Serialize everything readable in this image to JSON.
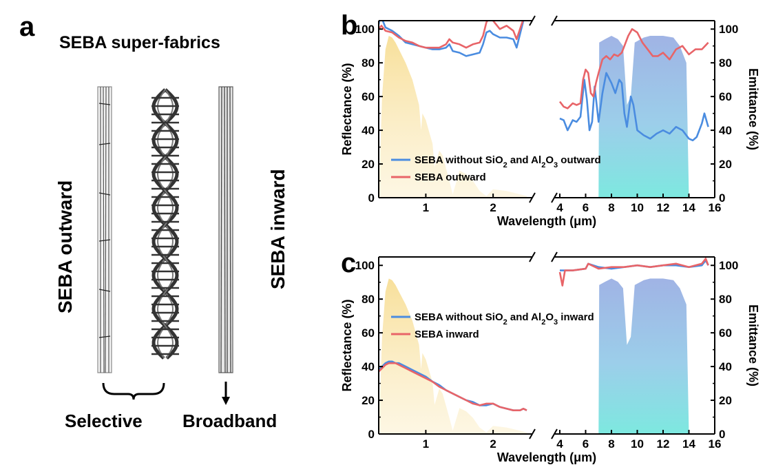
{
  "panel_a": {
    "letter": "a",
    "title": "SEBA super-fabrics",
    "left_label": "SEBA outward",
    "right_label": "SEBA inward",
    "bottom_left": "Selective",
    "bottom_right": "Broadband"
  },
  "chart_data": [
    {
      "type": "line",
      "panel": "b",
      "xlabel": "Wavelength (μm)",
      "ylabel": "Reflectance (%)",
      "y2label": "Emittance (%)",
      "ylim": [
        0,
        105
      ],
      "y2lim": [
        0,
        105
      ],
      "x_break": true,
      "xlim_left": [
        0.3,
        2.5
      ],
      "xlim_right": [
        4,
        16
      ],
      "xticks_left": [
        "1",
        "2"
      ],
      "xticks_right": [
        "4",
        "6",
        "8",
        "10",
        "12",
        "14",
        "16"
      ],
      "yticks": [
        "0",
        "20",
        "40",
        "60",
        "80",
        "100"
      ],
      "legend_position": "lower-left",
      "series": [
        {
          "name": "SEBA without SiO2 and Al2O3 outward",
          "color": "#4a8ce0",
          "left": {
            "x": [
              0.3,
              0.32,
              0.36,
              0.4,
              0.5,
              0.6,
              0.7,
              0.8,
              0.9,
              1.0,
              1.1,
              1.2,
              1.3,
              1.35,
              1.4,
              1.5,
              1.6,
              1.7,
              1.8,
              1.85,
              1.9,
              1.95,
              2.0,
              2.1,
              2.2,
              2.3,
              2.35,
              2.4,
              2.45,
              2.5
            ],
            "y": [
              103,
              107,
              105,
              101,
              99,
              96,
              92,
              91,
              90,
              89,
              88,
              88,
              89,
              91,
              87,
              86,
              84,
              85,
              86,
              91,
              98,
              99,
              97,
              95,
              95,
              94,
              89,
              97,
              105,
              110
            ]
          },
          "right": {
            "x": [
              4,
              4.3,
              4.6,
              5,
              5.3,
              5.6,
              5.9,
              6.1,
              6.3,
              6.5,
              6.7,
              7.0,
              7.3,
              7.6,
              8.0,
              8.3,
              8.6,
              8.8,
              9.0,
              9.2,
              9.5,
              9.7,
              10.0,
              10.5,
              11,
              11.5,
              12,
              12.5,
              13,
              13.5,
              14,
              14.3,
              14.6,
              15,
              15.2,
              15.5
            ],
            "y": [
              47,
              46,
              40,
              46,
              45,
              48,
              70,
              58,
              40,
              45,
              66,
              45,
              62,
              74,
              68,
              62,
              70,
              68,
              50,
              42,
              60,
              55,
              40,
              37,
              35,
              38,
              40,
              38,
              42,
              40,
              35,
              34,
              36,
              44,
              50,
              42
            ]
          }
        },
        {
          "name": "SEBA outward",
          "color": "#e86468",
          "left": {
            "x": [
              0.3,
              0.34,
              0.4,
              0.5,
              0.6,
              0.7,
              0.8,
              0.9,
              1.0,
              1.1,
              1.2,
              1.3,
              1.35,
              1.4,
              1.5,
              1.6,
              1.7,
              1.8,
              1.85,
              1.9,
              1.95,
              2.0,
              2.1,
              2.2,
              2.3,
              2.35,
              2.4,
              2.45,
              2.5
            ],
            "y": [
              100,
              102,
              99,
              98,
              95,
              93,
              92,
              90,
              89,
              89,
              89,
              91,
              94,
              92,
              91,
              89,
              91,
              92,
              96,
              104,
              107,
              105,
              100,
              102,
              99,
              94,
              100,
              106,
              109
            ]
          },
          "right": {
            "x": [
              4,
              4.3,
              4.6,
              5,
              5.3,
              5.6,
              5.8,
              6.0,
              6.2,
              6.4,
              6.6,
              6.8,
              7.0,
              7.3,
              7.6,
              7.9,
              8.2,
              8.5,
              8.8,
              9.0,
              9.3,
              9.6,
              10.0,
              10.4,
              10.8,
              11.2,
              11.6,
              12,
              12.5,
              13,
              13.5,
              14,
              14.5,
              15,
              15.5
            ],
            "y": [
              57,
              54,
              53,
              56,
              55,
              56,
              70,
              76,
              74,
              62,
              60,
              68,
              74,
              82,
              84,
              82,
              85,
              84,
              86,
              90,
              96,
              100,
              98,
              92,
              88,
              84,
              84,
              86,
              82,
              88,
              90,
              85,
              88,
              88,
              92
            ]
          }
        }
      ],
      "spectra": {
        "solar_color": "#f8e4a8",
        "window_color": "#7fd8de"
      }
    },
    {
      "type": "line",
      "panel": "c",
      "xlabel": "Wavelength (μm)",
      "ylabel": "Reflectance (%)",
      "y2label": "Emittance (%)",
      "ylim": [
        0,
        105
      ],
      "y2lim": [
        0,
        105
      ],
      "x_break": true,
      "xlim_left": [
        0.3,
        2.5
      ],
      "xlim_right": [
        4,
        16
      ],
      "xticks_left": [
        "1",
        "2"
      ],
      "xticks_right": [
        "4",
        "6",
        "8",
        "10",
        "12",
        "14",
        "16"
      ],
      "yticks": [
        "0",
        "20",
        "40",
        "60",
        "80",
        "100"
      ],
      "legend_position": "upper-left",
      "series": [
        {
          "name": "SEBA without SiO2 and Al2O3 inward",
          "color": "#4a8ce0",
          "left": {
            "x": [
              0.3,
              0.35,
              0.4,
              0.45,
              0.5,
              0.55,
              0.6,
              0.7,
              0.8,
              0.9,
              1.0,
              1.1,
              1.2,
              1.3,
              1.4,
              1.5,
              1.6,
              1.7,
              1.8,
              1.9,
              2.0,
              2.1,
              2.2,
              2.3,
              2.4,
              2.45,
              2.5
            ],
            "y": [
              38,
              40,
              42,
              43,
              43,
              42,
              42,
              40,
              38,
              36,
              34,
              31,
              29,
              26,
              24,
              22,
              20,
              19,
              17,
              17,
              18,
              16,
              15,
              14,
              14,
              15,
              14
            ]
          },
          "right": {
            "x": [
              4,
              5,
              6,
              6.2,
              7,
              8,
              9,
              10,
              11,
              12,
              13,
              14,
              15,
              15.3,
              15.5
            ],
            "y": [
              97,
              97,
              98,
              101,
              99,
              98,
              99,
              100,
              99,
              100,
              100,
              99,
              100,
              103,
              100
            ]
          }
        },
        {
          "name": "SEBA inward",
          "color": "#e86468",
          "left": {
            "x": [
              0.3,
              0.35,
              0.4,
              0.45,
              0.5,
              0.55,
              0.6,
              0.7,
              0.8,
              0.9,
              1.0,
              1.1,
              1.2,
              1.3,
              1.4,
              1.5,
              1.6,
              1.7,
              1.8,
              1.9,
              2.0,
              2.1,
              2.2,
              2.3,
              2.4,
              2.45,
              2.5
            ],
            "y": [
              37,
              39,
              41,
              42,
              42,
              42,
              41,
              39,
              37,
              35,
              33,
              31,
              28,
              26,
              24,
              22,
              20,
              18,
              17,
              18,
              18,
              16,
              15,
              14,
              14,
              15,
              14
            ]
          },
          "right": {
            "x": [
              4,
              4.2,
              4.4,
              5,
              6,
              6.2,
              7,
              8,
              9,
              10,
              11,
              12,
              13,
              14,
              15,
              15.3,
              15.5
            ],
            "y": [
              96,
              88,
              97,
              97,
              98,
              101,
              98,
              99,
              99,
              100,
              99,
              100,
              101,
              99,
              101,
              104,
              100
            ]
          }
        }
      ],
      "spectra": {
        "solar_color": "#f8e4a8",
        "window_color": "#7fd8de"
      }
    }
  ]
}
